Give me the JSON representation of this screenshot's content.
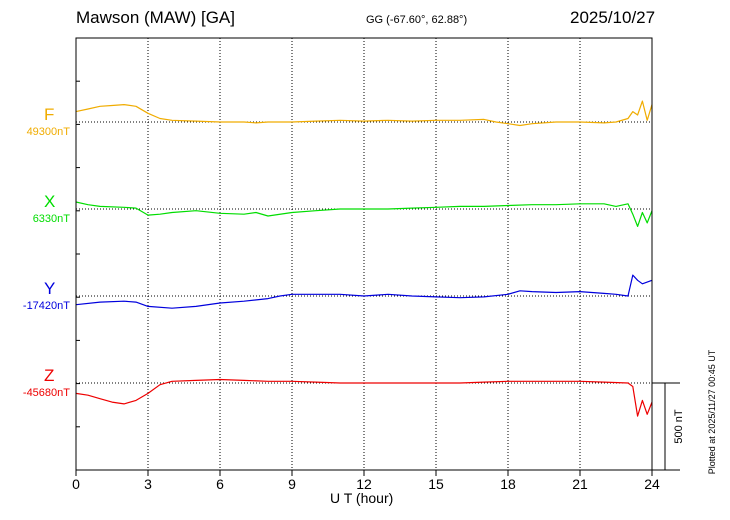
{
  "header": {
    "station": "Mawson (MAW)  [GA]",
    "coords": "GG (-67.60°,  62.88°)",
    "date": "2025/10/27"
  },
  "plotted_note": "Plotted at 2025/11/27 00:45 UT",
  "chart_data": {
    "type": "line",
    "title": "Mawson (MAW)  [GA]",
    "xlabel": "U T (hour)",
    "xlim": [
      0,
      24
    ],
    "xticks": [
      0,
      3,
      6,
      9,
      12,
      15,
      18,
      21,
      24
    ],
    "xtick_labels": [
      "0",
      "3",
      "6",
      "9",
      "12",
      "15",
      "18",
      "21",
      "24"
    ],
    "grid": true,
    "scale_bar": {
      "value_nT": 500,
      "label": "500 nT"
    },
    "series": [
      {
        "name": "F",
        "baseline_label": "49300nT",
        "baseline_nT": 49300,
        "color": "#f0ac00",
        "points": [
          [
            0,
            49360
          ],
          [
            0.5,
            49375
          ],
          [
            1,
            49390
          ],
          [
            1.5,
            49395
          ],
          [
            2,
            49400
          ],
          [
            2.5,
            49390
          ],
          [
            3,
            49350
          ],
          [
            3.5,
            49320
          ],
          [
            4,
            49310
          ],
          [
            5,
            49305
          ],
          [
            6,
            49300
          ],
          [
            7,
            49300
          ],
          [
            7.5,
            49295
          ],
          [
            8,
            49300
          ],
          [
            9,
            49300
          ],
          [
            10,
            49305
          ],
          [
            11,
            49310
          ],
          [
            12,
            49305
          ],
          [
            13,
            49310
          ],
          [
            14,
            49305
          ],
          [
            15,
            49310
          ],
          [
            16,
            49310
          ],
          [
            17,
            49315
          ],
          [
            17.5,
            49300
          ],
          [
            18,
            49290
          ],
          [
            18.5,
            49280
          ],
          [
            19,
            49290
          ],
          [
            20,
            49300
          ],
          [
            21,
            49300
          ],
          [
            22,
            49295
          ],
          [
            22.5,
            49300
          ],
          [
            23,
            49320
          ],
          [
            23.2,
            49360
          ],
          [
            23.4,
            49340
          ],
          [
            23.6,
            49420
          ],
          [
            23.8,
            49310
          ],
          [
            24,
            49400
          ]
        ]
      },
      {
        "name": "X",
        "baseline_label": "6330nT",
        "baseline_nT": 6330,
        "color": "#00dd00",
        "points": [
          [
            0,
            6370
          ],
          [
            0.5,
            6355
          ],
          [
            1,
            6345
          ],
          [
            2,
            6340
          ],
          [
            2.5,
            6335
          ],
          [
            3,
            6295
          ],
          [
            3.5,
            6300
          ],
          [
            4,
            6310
          ],
          [
            5,
            6320
          ],
          [
            6,
            6305
          ],
          [
            7,
            6300
          ],
          [
            7.5,
            6310
          ],
          [
            8,
            6290
          ],
          [
            9,
            6310
          ],
          [
            10,
            6320
          ],
          [
            11,
            6330
          ],
          [
            12,
            6330
          ],
          [
            13,
            6330
          ],
          [
            14,
            6335
          ],
          [
            15,
            6340
          ],
          [
            16,
            6345
          ],
          [
            17,
            6345
          ],
          [
            18,
            6350
          ],
          [
            19,
            6355
          ],
          [
            20,
            6355
          ],
          [
            21,
            6360
          ],
          [
            22,
            6360
          ],
          [
            22.5,
            6345
          ],
          [
            23,
            6360
          ],
          [
            23.2,
            6300
          ],
          [
            23.4,
            6230
          ],
          [
            23.6,
            6310
          ],
          [
            23.8,
            6250
          ],
          [
            24,
            6320
          ]
        ]
      },
      {
        "name": "Y",
        "baseline_label": "-17420nT",
        "baseline_nT": -17420,
        "color": "#0000dd",
        "points": [
          [
            0,
            -17470
          ],
          [
            1,
            -17455
          ],
          [
            2,
            -17450
          ],
          [
            2.5,
            -17455
          ],
          [
            3,
            -17480
          ],
          [
            4,
            -17490
          ],
          [
            5,
            -17480
          ],
          [
            6,
            -17460
          ],
          [
            7,
            -17450
          ],
          [
            8,
            -17435
          ],
          [
            8.5,
            -17420
          ],
          [
            9,
            -17410
          ],
          [
            10,
            -17410
          ],
          [
            11,
            -17410
          ],
          [
            12,
            -17420
          ],
          [
            13,
            -17410
          ],
          [
            14,
            -17420
          ],
          [
            15,
            -17425
          ],
          [
            16,
            -17430
          ],
          [
            17,
            -17425
          ],
          [
            18,
            -17410
          ],
          [
            18.5,
            -17390
          ],
          [
            19,
            -17395
          ],
          [
            20,
            -17400
          ],
          [
            21,
            -17395
          ],
          [
            22,
            -17405
          ],
          [
            22.5,
            -17410
          ],
          [
            23,
            -17420
          ],
          [
            23.2,
            -17300
          ],
          [
            23.4,
            -17330
          ],
          [
            23.6,
            -17350
          ],
          [
            23.8,
            -17340
          ],
          [
            24,
            -17330
          ]
        ]
      },
      {
        "name": "Z",
        "baseline_label": "-45680nT",
        "baseline_nT": -45680,
        "color": "#ee0000",
        "points": [
          [
            0,
            -45740
          ],
          [
            0.5,
            -45750
          ],
          [
            1,
            -45770
          ],
          [
            1.5,
            -45790
          ],
          [
            2,
            -45800
          ],
          [
            2.5,
            -45780
          ],
          [
            3,
            -45740
          ],
          [
            3.5,
            -45690
          ],
          [
            4,
            -45670
          ],
          [
            5,
            -45665
          ],
          [
            6,
            -45660
          ],
          [
            7,
            -45665
          ],
          [
            8,
            -45670
          ],
          [
            9,
            -45670
          ],
          [
            10,
            -45675
          ],
          [
            11,
            -45680
          ],
          [
            12,
            -45680
          ],
          [
            13,
            -45680
          ],
          [
            14,
            -45680
          ],
          [
            15,
            -45680
          ],
          [
            16,
            -45680
          ],
          [
            17,
            -45675
          ],
          [
            18,
            -45670
          ],
          [
            19,
            -45670
          ],
          [
            20,
            -45670
          ],
          [
            21,
            -45670
          ],
          [
            22,
            -45675
          ],
          [
            23,
            -45680
          ],
          [
            23.2,
            -45700
          ],
          [
            23.4,
            -45870
          ],
          [
            23.6,
            -45780
          ],
          [
            23.8,
            -45860
          ],
          [
            24,
            -45790
          ]
        ]
      }
    ]
  }
}
